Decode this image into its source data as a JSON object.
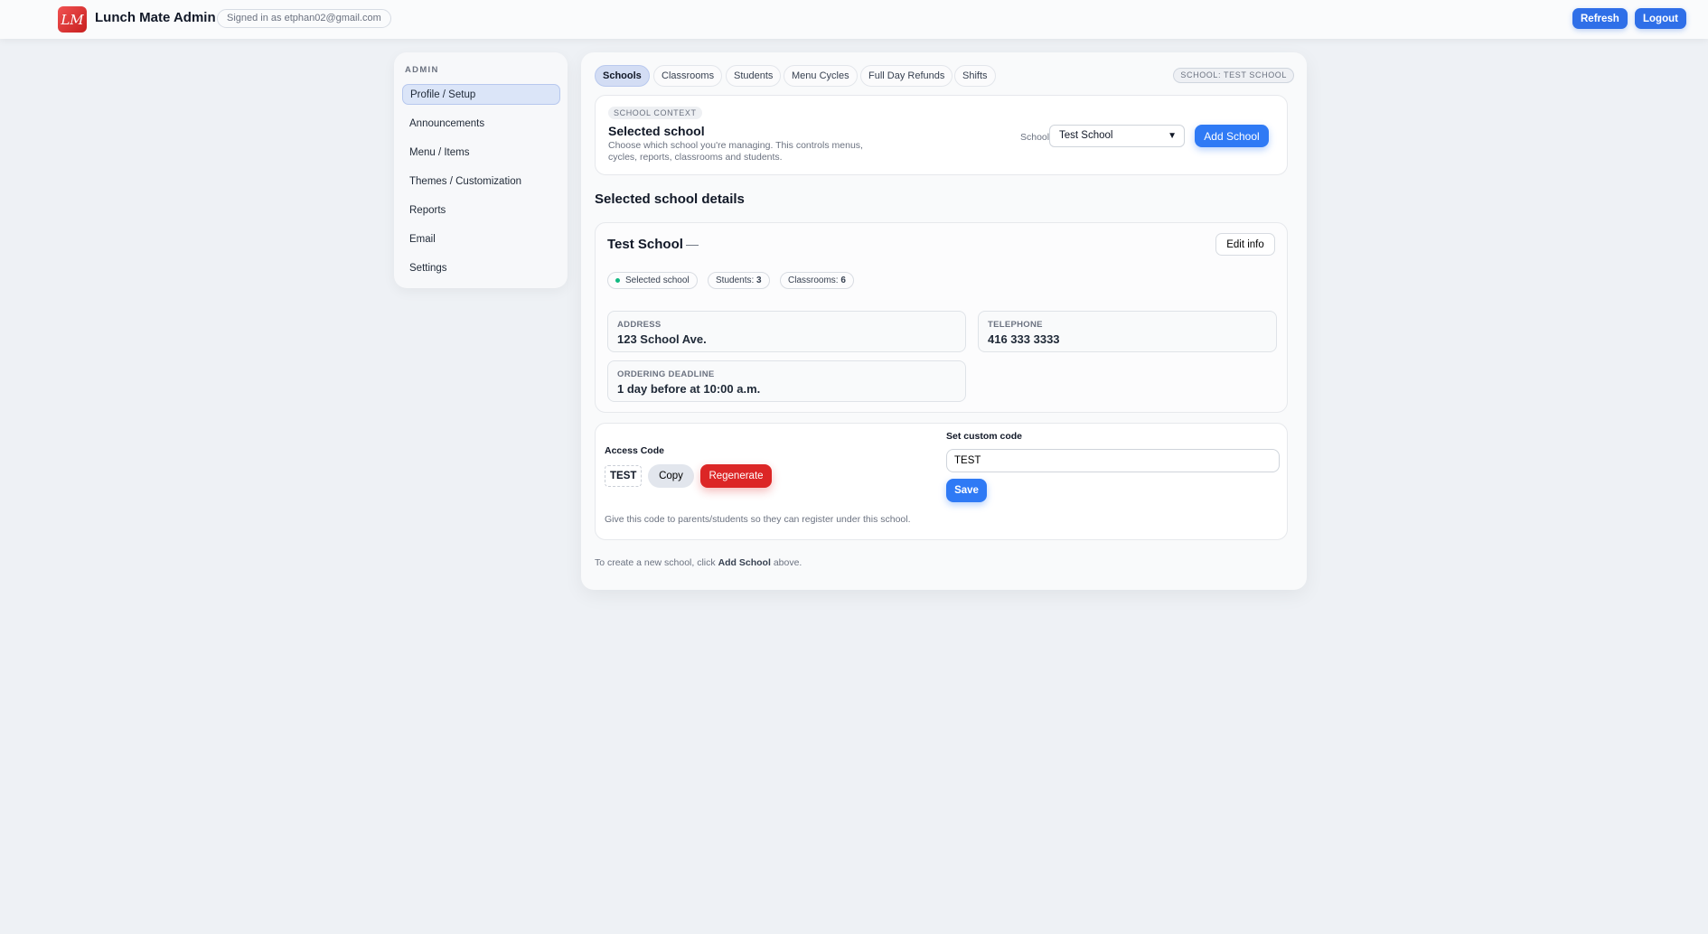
{
  "header": {
    "logo_text": "LM",
    "title": "Lunch Mate Admin",
    "signed_in": "Signed in as etphan02@gmail.com",
    "refresh": "Refresh",
    "logout": "Logout"
  },
  "sidebar": {
    "heading": "ADMIN",
    "items": [
      {
        "label": "Profile / Setup"
      },
      {
        "label": "Announcements"
      },
      {
        "label": "Menu / Items"
      },
      {
        "label": "Themes / Customization"
      },
      {
        "label": "Reports"
      },
      {
        "label": "Email"
      },
      {
        "label": "Settings"
      }
    ]
  },
  "tabs": [
    {
      "label": "Schools"
    },
    {
      "label": "Classrooms"
    },
    {
      "label": "Students"
    },
    {
      "label": "Menu Cycles"
    },
    {
      "label": "Full Day Refunds"
    },
    {
      "label": "Shifts"
    }
  ],
  "school_pill": "SCHOOL: TEST SCHOOL",
  "context": {
    "tag": "SCHOOL CONTEXT",
    "title": "Selected school",
    "desc1": "Choose which school you're managing. This controls menus,",
    "desc2": "cycles, reports, classrooms and students.",
    "select_label": "School",
    "selected": "Test School",
    "add": "Add School"
  },
  "details": {
    "heading": "Selected school details",
    "name": "Test School",
    "dash": "—",
    "edit": "Edit info",
    "chip_selected": "Selected school",
    "students_label": "Students:",
    "students": "3",
    "classrooms_label": "Classrooms:",
    "classrooms": "6",
    "address_label": "ADDRESS",
    "address": "123 School Ave.",
    "telephone_label": "TELEPHONE",
    "telephone": "416 333 3333",
    "deadline_label": "ORDERING DEADLINE",
    "deadline": "1 day before at 10:00 a.m."
  },
  "access": {
    "label": "Access Code",
    "code": "TEST",
    "copy": "Copy",
    "regenerate": "Regenerate",
    "hint": "Give this code to parents/students so they can register under this school.",
    "custom_label": "Set custom code",
    "custom_value": "TEST",
    "save": "Save"
  },
  "footer": {
    "pre": "To create a new school, click ",
    "bold": "Add School",
    "post": " above."
  },
  "colors": {
    "primary": "#2f7af5",
    "danger": "#dc2626",
    "status_dot": "#10b981"
  }
}
